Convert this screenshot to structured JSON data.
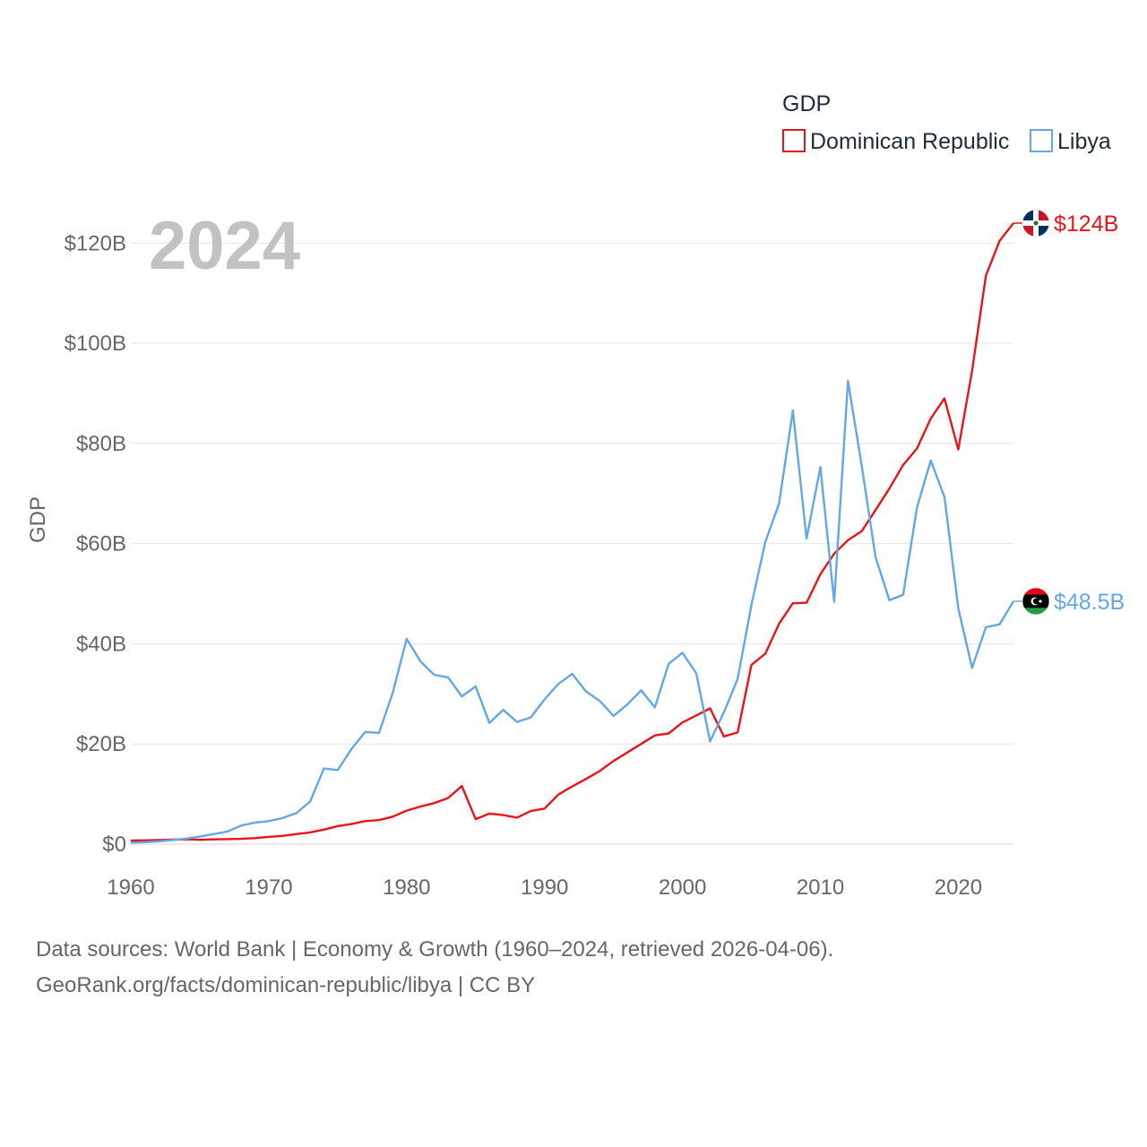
{
  "chart_data": {
    "type": "line",
    "year_label": "2024",
    "ylabel": "GDP",
    "legend_title": "GDP",
    "ylim": [
      0,
      124
    ],
    "xlim": [
      1960,
      2024
    ],
    "y_ticks": [
      {
        "value": 0,
        "label": "$0"
      },
      {
        "value": 20,
        "label": "$20B"
      },
      {
        "value": 40,
        "label": "$40B"
      },
      {
        "value": 60,
        "label": "$60B"
      },
      {
        "value": 80,
        "label": "$80B"
      },
      {
        "value": 100,
        "label": "$100B"
      },
      {
        "value": 120,
        "label": "$120B"
      }
    ],
    "x_ticks": [
      {
        "value": 1960,
        "label": "1960"
      },
      {
        "value": 1970,
        "label": "1970"
      },
      {
        "value": 1980,
        "label": "1980"
      },
      {
        "value": 1990,
        "label": "1990"
      },
      {
        "value": 2000,
        "label": "2000"
      },
      {
        "value": 2010,
        "label": "2010"
      },
      {
        "value": 2020,
        "label": "2020"
      }
    ],
    "start_year": 1960,
    "series": [
      {
        "name": "Dominican Republic",
        "color": "#e8141b",
        "end_label": "$124B",
        "flag": "dominican-republic",
        "values": [
          0.72,
          0.75,
          0.82,
          0.9,
          0.95,
          0.85,
          0.95,
          1.0,
          1.05,
          1.2,
          1.45,
          1.65,
          2.0,
          2.35,
          2.9,
          3.6,
          4.0,
          4.6,
          4.8,
          5.5,
          6.7,
          7.5,
          8.2,
          9.2,
          11.6,
          5.0,
          6.1,
          5.8,
          5.3,
          6.6,
          7.1,
          9.9,
          11.5,
          13.0,
          14.6,
          16.6,
          18.3,
          20.0,
          21.7,
          22.1,
          24.3,
          25.7,
          27.1,
          21.5,
          22.3,
          35.8,
          38.0,
          44.0,
          48.1,
          48.2,
          53.9,
          58.0,
          60.7,
          62.5,
          66.7,
          71.0,
          75.7,
          79.0,
          85.0,
          89.0,
          78.8,
          94.5,
          113.5,
          120.5,
          124.0
        ]
      },
      {
        "name": "Libya",
        "color": "#63a7e4",
        "end_label": "$48.5B",
        "flag": "libya",
        "values": [
          0.3,
          0.4,
          0.55,
          0.8,
          1.1,
          1.5,
          2.0,
          2.5,
          3.7,
          4.3,
          4.6,
          5.2,
          6.2,
          8.5,
          15.1,
          14.8,
          19.0,
          22.4,
          22.2,
          30.3,
          41.0,
          36.5,
          33.8,
          33.3,
          29.5,
          31.5,
          24.2,
          26.8,
          24.4,
          25.3,
          28.9,
          32.0,
          34.0,
          30.5,
          28.6,
          25.6,
          27.9,
          30.7,
          27.3,
          36.0,
          38.2,
          34.1,
          20.5,
          26.3,
          33.0,
          47.8,
          60.3,
          68.0,
          86.6,
          61.0,
          75.3,
          48.4,
          92.5,
          75.5,
          57.3,
          48.7,
          49.8,
          67.2,
          76.6,
          69.3,
          47.1,
          35.2,
          43.3,
          43.9,
          48.5
        ]
      }
    ]
  },
  "footer": {
    "line1": "Data sources: World Bank | Economy & Growth (1960–2024, retrieved 2026-04-06).",
    "line2": "GeoRank.org/facts/dominican-republic/libya | CC BY"
  }
}
